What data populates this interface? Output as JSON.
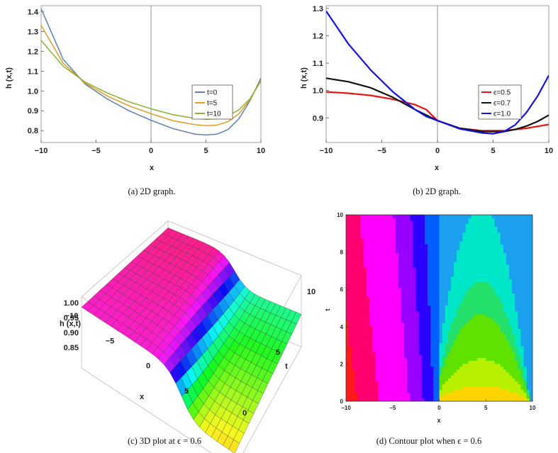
{
  "chart_data": [
    {
      "id": "a",
      "type": "line",
      "caption": "(a)  2D graph.",
      "xlabel": "x",
      "ylabel": "h (x,t)",
      "xlim": [
        -10,
        10
      ],
      "ylim": [
        0.74,
        1.43
      ],
      "xticks": [
        -10,
        -5,
        0,
        5,
        10
      ],
      "xtick_labels": [
        "−10",
        "−5",
        "0",
        "5",
        "10"
      ],
      "yticks": [
        0.8,
        0.9,
        1.0,
        1.1,
        1.2,
        1.3,
        1.4
      ],
      "ytick_labels": [
        "0.8",
        "0.9",
        "1.0",
        "1.1",
        "1.2",
        "1.3",
        "1.4"
      ],
      "legend_position": "right",
      "series": [
        {
          "name": "t=0",
          "color": "#5e81b5",
          "x": [
            -10,
            -8,
            -6,
            -4,
            -2,
            0,
            2,
            4,
            5,
            6,
            7,
            8,
            9,
            10
          ],
          "y": [
            1.415,
            1.16,
            1.035,
            0.96,
            0.9,
            0.852,
            0.81,
            0.782,
            0.778,
            0.782,
            0.805,
            0.86,
            0.95,
            1.065
          ]
        },
        {
          "name": "t=5",
          "color": "#e19c24",
          "x": [
            -10,
            -8,
            -6,
            -4,
            -2,
            0,
            2,
            4,
            5,
            6,
            7,
            8,
            9,
            10
          ],
          "y": [
            1.33,
            1.14,
            1.04,
            0.975,
            0.925,
            0.885,
            0.85,
            0.83,
            0.825,
            0.828,
            0.845,
            0.885,
            0.955,
            1.055
          ]
        },
        {
          "name": "t=10",
          "color": "#8fb032",
          "x": [
            -10,
            -8,
            -6,
            -4,
            -2,
            0,
            2,
            4,
            5,
            6,
            7,
            8,
            9,
            10
          ],
          "y": [
            1.255,
            1.125,
            1.045,
            0.99,
            0.945,
            0.91,
            0.88,
            0.862,
            0.857,
            0.86,
            0.875,
            0.905,
            0.96,
            1.05
          ]
        }
      ]
    },
    {
      "id": "b",
      "type": "line",
      "caption": "(b)  2D graph.",
      "xlabel": "x",
      "ylabel": "h (x,t)",
      "xlim": [
        -10,
        10
      ],
      "ylim": [
        0.81,
        1.31
      ],
      "xticks": [
        -10,
        -5,
        0,
        5,
        10
      ],
      "xtick_labels": [
        "−10",
        "−5",
        "0",
        "5",
        "10"
      ],
      "yticks": [
        0.9,
        1.0,
        1.1,
        1.2,
        1.3
      ],
      "ytick_labels": [
        "0.9",
        "1.0",
        "1.1",
        "1.2",
        "1.3"
      ],
      "legend_position": "right",
      "series": [
        {
          "name": "ϵ=0.5",
          "color": "#ee1111",
          "x": [
            -10,
            -8,
            -6,
            -4,
            -2,
            -1,
            0,
            2,
            4,
            6,
            8,
            10
          ],
          "y": [
            0.995,
            0.99,
            0.982,
            0.968,
            0.948,
            0.93,
            0.89,
            0.862,
            0.853,
            0.853,
            0.862,
            0.876
          ]
        },
        {
          "name": "ϵ=0.7",
          "color": "#111111",
          "x": [
            -10,
            -8,
            -6,
            -4,
            -2,
            -1,
            0,
            2,
            4,
            6,
            7,
            8,
            9,
            10
          ],
          "y": [
            1.045,
            1.032,
            1.01,
            0.975,
            0.93,
            0.91,
            0.89,
            0.862,
            0.85,
            0.85,
            0.858,
            0.87,
            0.887,
            0.91
          ]
        },
        {
          "name": "ϵ=1.0",
          "color": "#1111ee",
          "x": [
            -10,
            -8,
            -6,
            -4,
            -2,
            -1,
            0,
            2,
            4,
            5,
            6,
            7,
            8,
            9,
            10
          ],
          "y": [
            1.29,
            1.17,
            1.075,
            0.995,
            0.93,
            0.905,
            0.89,
            0.86,
            0.845,
            0.842,
            0.85,
            0.875,
            0.92,
            0.98,
            1.055
          ]
        }
      ]
    },
    {
      "id": "c",
      "type": "surface3d",
      "caption": "(c)  3D plot at ϵ = 0.6",
      "xlabel": "x",
      "ylabel": "t",
      "zlabel": "h (x,t)",
      "xlim": [
        -10,
        10
      ],
      "ylim": [
        0,
        10
      ],
      "zlim": [
        0.78,
        1.02
      ],
      "xticks": [
        -10,
        -5,
        0,
        5
      ],
      "xtick_labels": [
        "−10",
        "−5",
        "0",
        "5"
      ],
      "yticks": [
        0,
        5,
        10
      ],
      "ytick_labels": [
        "0",
        "5",
        "10"
      ],
      "zticks": [
        0.85,
        0.9,
        0.95,
        1.0
      ],
      "ztick_labels": [
        "0.85",
        "0.90",
        "0.95",
        "1.00"
      ]
    },
    {
      "id": "d",
      "type": "heatmap",
      "caption": "(d)  Contour plot when ϵ = 0.6",
      "xlabel": "x",
      "ylabel": "t",
      "xlim": [
        -10,
        10
      ],
      "ylim": [
        0,
        10
      ],
      "xticks": [
        -10,
        -5,
        0,
        5,
        10
      ],
      "xtick_labels": [
        "−10",
        "−5",
        "0",
        "5",
        "10"
      ],
      "yticks": [
        0,
        2,
        4,
        6,
        8,
        10
      ],
      "ytick_labels": [
        "0",
        "2",
        "4",
        "6",
        "8",
        "10"
      ],
      "level_colors": [
        "#ffd400",
        "#b7f000",
        "#5fe200",
        "#23e06b",
        "#00e6c8",
        "#1aa0ee",
        "#0060ff",
        "#2a00ff",
        "#9a00ff",
        "#ff00ff",
        "#ff0070",
        "#ff1a1a"
      ]
    }
  ]
}
